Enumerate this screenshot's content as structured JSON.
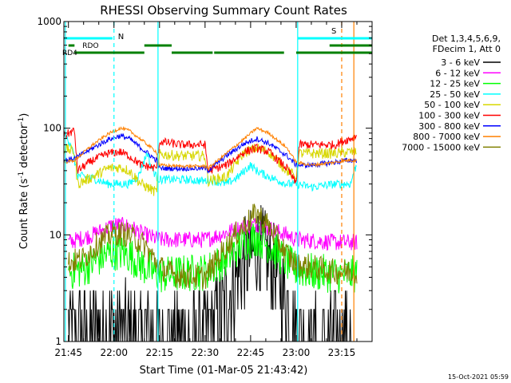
{
  "chart_data": {
    "type": "line",
    "title": "RHESSI Observing Summary Count Rates",
    "xlabel": "Start Time (01-Mar-05 21:43:42)",
    "ylabel_main": "Count Rate (s",
    "ylabel_sup1": "-1",
    "ylabel_mid": " detector",
    "ylabel_sup2": "-1",
    "ylabel_end": ")",
    "y_scale": "log",
    "ylim": [
      1,
      1000
    ],
    "xlim_min": [
      -1.5,
      100
    ],
    "x_ticks": [
      {
        "min": 0,
        "label": "21:45"
      },
      {
        "min": 15,
        "label": "22:00"
      },
      {
        "min": 30,
        "label": "22:15"
      },
      {
        "min": 45,
        "label": "22:30"
      },
      {
        "min": 60,
        "label": "22:45"
      },
      {
        "min": 75,
        "label": "23:00"
      },
      {
        "min": 90,
        "label": "23:15"
      }
    ],
    "y_ticks": [
      {
        "value": 1,
        "label": "1"
      },
      {
        "value": 10,
        "label": "10"
      },
      {
        "value": 100,
        "label": "100"
      },
      {
        "value": 1000,
        "label": "1000"
      }
    ],
    "legend_header": [
      "Det 1,3,4,5,6,9,",
      "FDecim 1, Att 0"
    ],
    "legend_placement": "right",
    "series": [
      {
        "name": "3 - 6 keV",
        "color": "#000000",
        "noise": 0.45,
        "stairs": true,
        "points": [
          [
            0,
            1.2
          ],
          [
            8,
            1.3
          ],
          [
            13,
            1.4
          ],
          [
            17,
            1.3
          ],
          [
            22,
            1.2
          ],
          [
            30,
            1.1
          ],
          [
            35,
            1.0
          ],
          [
            45,
            1.1
          ],
          [
            52,
            2.5
          ],
          [
            58,
            5.5
          ],
          [
            62,
            7.5
          ],
          [
            66,
            6
          ],
          [
            72,
            2.5
          ],
          [
            75,
            1.3
          ],
          [
            80,
            1.0
          ],
          [
            88,
            1.1
          ],
          [
            93,
            1.3
          ]
        ]
      },
      {
        "name": "6 - 12 keV",
        "color": "#ff00ff",
        "noise": 0.08,
        "points": [
          [
            0,
            8.5
          ],
          [
            8,
            10
          ],
          [
            15,
            12.5
          ],
          [
            20,
            12
          ],
          [
            25,
            10
          ],
          [
            30,
            9
          ],
          [
            45,
            9
          ],
          [
            52,
            10.5
          ],
          [
            58,
            12
          ],
          [
            62,
            12.5
          ],
          [
            66,
            11.5
          ],
          [
            72,
            10
          ],
          [
            75,
            9
          ],
          [
            88,
            8.5
          ],
          [
            95,
            8.5
          ]
        ]
      },
      {
        "name": "12 - 25 keV",
        "color": "#00ff00",
        "noise": 0.18,
        "points": [
          [
            0,
            4.5
          ],
          [
            5,
            4.8
          ],
          [
            10,
            6
          ],
          [
            15,
            7
          ],
          [
            20,
            6.5
          ],
          [
            25,
            5.0
          ],
          [
            30,
            4.2
          ],
          [
            45,
            4.5
          ],
          [
            52,
            6
          ],
          [
            58,
            8.5
          ],
          [
            62,
            9.5
          ],
          [
            66,
            8
          ],
          [
            72,
            5.5
          ],
          [
            75,
            4.8
          ],
          [
            80,
            4.5
          ],
          [
            90,
            4.2
          ],
          [
            95,
            4.3
          ]
        ]
      },
      {
        "name": "25 - 50 keV",
        "color": "#00ffff",
        "noise": 0.04,
        "points": [
          [
            -1.5,
            90
          ],
          [
            1,
            70
          ],
          [
            2,
            50
          ],
          [
            3,
            36
          ],
          [
            8,
            34
          ],
          [
            13,
            30
          ],
          [
            20,
            30
          ],
          [
            23,
            35
          ],
          [
            26,
            60
          ],
          [
            27,
            45
          ],
          [
            29,
            35
          ],
          [
            30,
            33
          ],
          [
            37,
            33
          ],
          [
            45,
            32
          ],
          [
            46,
            33
          ],
          [
            52,
            30
          ],
          [
            56,
            35
          ],
          [
            58,
            40
          ],
          [
            60,
            45
          ],
          [
            62,
            40
          ],
          [
            66,
            35
          ],
          [
            72,
            30
          ],
          [
            75,
            30
          ],
          [
            80,
            28
          ],
          [
            88,
            30
          ],
          [
            93,
            30
          ],
          [
            94,
            40
          ],
          [
            95,
            45
          ]
        ]
      },
      {
        "name": "50 - 100 keV",
        "color": "#d7d700",
        "noise": 0.05,
        "points": [
          [
            -1.5,
            65
          ],
          [
            2,
            60
          ],
          [
            3,
            30
          ],
          [
            8,
            35
          ],
          [
            13,
            42
          ],
          [
            17,
            43
          ],
          [
            20,
            40
          ],
          [
            24,
            30
          ],
          [
            29,
            25
          ],
          [
            30,
            57
          ],
          [
            37,
            55
          ],
          [
            45,
            55
          ],
          [
            46,
            32
          ],
          [
            52,
            35
          ],
          [
            58,
            60
          ],
          [
            62,
            65
          ],
          [
            66,
            60
          ],
          [
            72,
            40
          ],
          [
            75,
            35
          ],
          [
            76,
            58
          ],
          [
            88,
            58
          ],
          [
            93,
            60
          ],
          [
            95,
            60
          ]
        ]
      },
      {
        "name": "100 - 300 keV",
        "color": "#ff0000",
        "noise": 0.04,
        "points": [
          [
            -1.5,
            85
          ],
          [
            2,
            95
          ],
          [
            3,
            40
          ],
          [
            8,
            50
          ],
          [
            13,
            58
          ],
          [
            17,
            60
          ],
          [
            20,
            55
          ],
          [
            24,
            45
          ],
          [
            29,
            42
          ],
          [
            30,
            75
          ],
          [
            37,
            70
          ],
          [
            45,
            70
          ],
          [
            46,
            40
          ],
          [
            52,
            45
          ],
          [
            58,
            60
          ],
          [
            62,
            65
          ],
          [
            66,
            60
          ],
          [
            72,
            42
          ],
          [
            75,
            30
          ],
          [
            76,
            70
          ],
          [
            88,
            70
          ],
          [
            90,
            75
          ],
          [
            93,
            80
          ],
          [
            95,
            85
          ]
        ]
      },
      {
        "name": "300 - 800 keV",
        "color": "#0000ff",
        "noise": 0.025,
        "points": [
          [
            -1.5,
            50
          ],
          [
            2,
            52
          ],
          [
            8,
            65
          ],
          [
            13,
            78
          ],
          [
            17,
            85
          ],
          [
            20,
            80
          ],
          [
            24,
            65
          ],
          [
            29,
            50
          ],
          [
            30,
            42
          ],
          [
            37,
            42
          ],
          [
            45,
            42
          ],
          [
            46,
            40
          ],
          [
            52,
            55
          ],
          [
            58,
            72
          ],
          [
            62,
            80
          ],
          [
            66,
            72
          ],
          [
            72,
            55
          ],
          [
            75,
            45
          ],
          [
            80,
            45
          ],
          [
            88,
            48
          ],
          [
            92,
            50
          ],
          [
            95,
            50
          ]
        ]
      },
      {
        "name": "800 - 7000 keV",
        "color": "#ff8000",
        "noise": 0.015,
        "points": [
          [
            -1.5,
            48
          ],
          [
            2,
            50
          ],
          [
            8,
            70
          ],
          [
            13,
            88
          ],
          [
            17,
            100
          ],
          [
            20,
            95
          ],
          [
            24,
            78
          ],
          [
            29,
            60
          ],
          [
            30,
            45
          ],
          [
            37,
            44
          ],
          [
            45,
            44
          ],
          [
            46,
            42
          ],
          [
            52,
            58
          ],
          [
            58,
            80
          ],
          [
            62,
            100
          ],
          [
            66,
            90
          ],
          [
            72,
            65
          ],
          [
            75,
            48
          ],
          [
            80,
            45
          ],
          [
            88,
            48
          ],
          [
            92,
            50
          ],
          [
            95,
            50
          ]
        ]
      },
      {
        "name": "7000 - 15000 keV",
        "color": "#808000",
        "noise": 0.12,
        "points": [
          [
            0,
            5.5
          ],
          [
            5,
            6
          ],
          [
            10,
            8.5
          ],
          [
            15,
            10.5
          ],
          [
            20,
            10
          ],
          [
            25,
            8
          ],
          [
            30,
            5
          ],
          [
            35,
            4.2
          ],
          [
            45,
            4.0
          ],
          [
            50,
            6.5
          ],
          [
            55,
            10
          ],
          [
            60,
            14
          ],
          [
            62,
            16
          ],
          [
            66,
            12
          ],
          [
            72,
            6.5
          ],
          [
            75,
            5.2
          ],
          [
            80,
            5.0
          ],
          [
            88,
            4.5
          ],
          [
            95,
            4.6
          ]
        ]
      }
    ],
    "bars": {
      "N_label": "N",
      "RDO_label": "RDO",
      "RD4_label": "RD4",
      "S_label": "S",
      "cyan_segments": [
        [
          -1.5,
          14.5
        ],
        [
          75.5,
          100
        ]
      ],
      "rdo_segments": [
        [
          0,
          2
        ],
        [
          25,
          34
        ],
        [
          86,
          100
        ]
      ],
      "rd4_segments": [
        [
          2,
          25
        ],
        [
          34,
          47.5
        ],
        [
          48,
          71
        ],
        [
          75,
          100
        ]
      ]
    },
    "markers": {
      "cyan_solid": [
        -1,
        29.5,
        75.5
      ],
      "cyan_dashed": [
        15
      ],
      "orange_solid": [
        94
      ],
      "orange_dashed": [
        90
      ]
    },
    "footer_date": "15-Oct-2021 05:59"
  }
}
